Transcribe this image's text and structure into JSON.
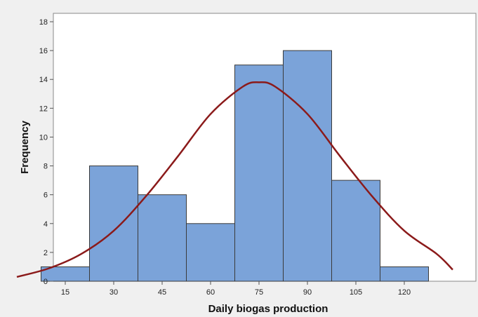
{
  "chart_data": {
    "type": "bar",
    "subtype": "histogram",
    "xlabel": "Daily biogas production",
    "ylabel": "Frequency",
    "bins": [
      {
        "center": 15,
        "count": 1
      },
      {
        "center": 30,
        "count": 8
      },
      {
        "center": 45,
        "count": 6
      },
      {
        "center": 60,
        "count": 4
      },
      {
        "center": 75,
        "count": 15
      },
      {
        "center": 90,
        "count": 16
      },
      {
        "center": 105,
        "count": 7
      },
      {
        "center": 120,
        "count": 1
      }
    ],
    "bin_width": 15,
    "xlim": [
      0,
      135
    ],
    "ylim": [
      0,
      18
    ],
    "x_ticks": [
      15,
      30,
      45,
      60,
      75,
      90,
      105,
      120
    ],
    "y_ticks": [
      0,
      2,
      4,
      6,
      8,
      10,
      12,
      14,
      16,
      18
    ],
    "grid": false,
    "legend": "none",
    "fit_curve": {
      "type": "normal",
      "x": [
        0,
        10,
        20,
        30,
        40,
        50,
        60,
        70,
        75,
        80,
        90,
        100,
        110,
        120,
        130,
        135
      ],
      "y": [
        0.3,
        0.9,
        1.9,
        3.5,
        5.9,
        8.7,
        11.6,
        13.5,
        13.8,
        13.5,
        11.6,
        8.7,
        5.9,
        3.5,
        1.9,
        0.8
      ]
    },
    "colors": {
      "bar_fill": "#7ba3d9",
      "bar_stroke": "#3a3a3a",
      "curve": "#8b1a1a",
      "plot_bg": "#ffffff",
      "page_bg": "#f0f0f0"
    }
  }
}
